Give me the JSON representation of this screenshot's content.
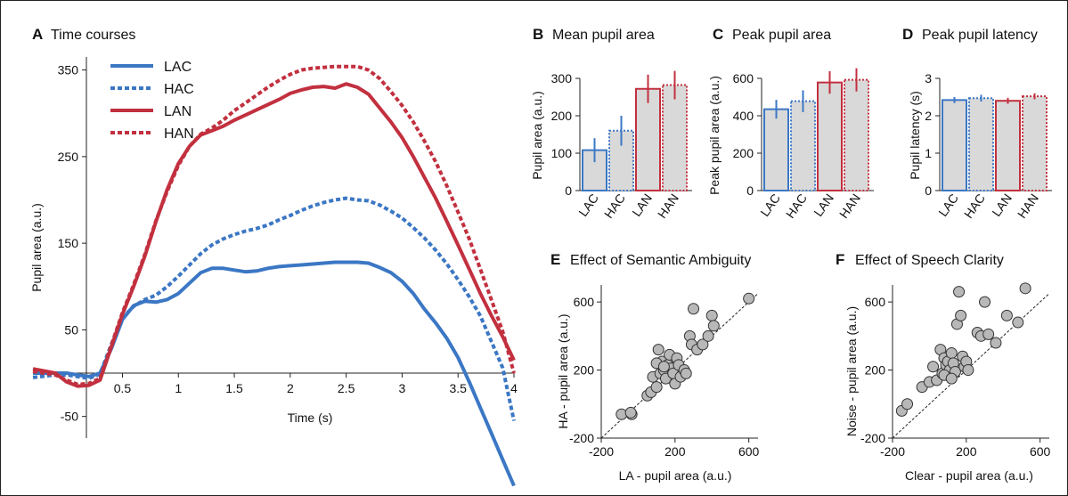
{
  "colors": {
    "LAC": "#3b77c4",
    "HAC": "#3b77c4",
    "LAN": "#c2303f",
    "HAN": "#c2303f",
    "bar_fill": "#d9d9d9",
    "point_fill": "#b8b8b8"
  },
  "chart_data": [
    {
      "panel_letter": "A",
      "type": "line",
      "title": "Time courses",
      "xlabel": "Time (s)",
      "ylabel": "Pupil area (a.u.)",
      "xlim": [
        -0.3,
        4.0
      ],
      "ylim": [
        -75,
        365
      ],
      "xticks": [
        0.5,
        1,
        1.5,
        2,
        2.5,
        3,
        3.5,
        4
      ],
      "xtick_labels": [
        "0.5",
        "1",
        "1.5",
        "2",
        "2.5",
        "3",
        "3.5",
        "4"
      ],
      "yticks": [
        -50,
        50,
        150,
        250,
        350
      ],
      "ytick_labels": [
        "-50",
        "50",
        "150",
        "250",
        "350"
      ],
      "legend_position": "top-left",
      "series": [
        {
          "name": "LAC",
          "style": "solid",
          "x": [
            -0.3,
            -0.1,
            0.0,
            0.1,
            0.2,
            0.3,
            0.4,
            0.5,
            0.6,
            0.7,
            0.8,
            0.9,
            1.0,
            1.1,
            1.2,
            1.3,
            1.4,
            1.5,
            1.6,
            1.7,
            1.8,
            1.9,
            2.0,
            2.1,
            2.2,
            2.3,
            2.4,
            2.5,
            2.6,
            2.7,
            2.8,
            2.9,
            3.0,
            3.1,
            3.2,
            3.3,
            3.4,
            3.5,
            3.6,
            3.7,
            3.8,
            3.9,
            4.0
          ],
          "values": [
            0,
            0,
            0,
            -2,
            -4,
            0,
            28,
            62,
            78,
            83,
            82,
            85,
            92,
            104,
            116,
            121,
            121,
            119,
            117,
            118,
            121,
            123,
            124,
            125,
            126,
            127,
            128,
            128,
            128,
            127,
            122,
            116,
            106,
            92,
            74,
            58,
            40,
            18,
            -10,
            -40,
            -70,
            -100,
            -130
          ]
        },
        {
          "name": "HAC",
          "style": "dashed",
          "x": [
            -0.3,
            -0.1,
            0.0,
            0.1,
            0.2,
            0.3,
            0.4,
            0.5,
            0.6,
            0.7,
            0.8,
            0.9,
            1.0,
            1.1,
            1.2,
            1.3,
            1.4,
            1.5,
            1.6,
            1.7,
            1.8,
            1.9,
            2.0,
            2.1,
            2.2,
            2.3,
            2.4,
            2.5,
            2.6,
            2.7,
            2.8,
            2.9,
            3.0,
            3.1,
            3.2,
            3.3,
            3.4,
            3.5,
            3.6,
            3.7,
            3.8,
            3.9,
            4.0
          ],
          "values": [
            -5,
            -2,
            -2,
            -4,
            -6,
            -1,
            33,
            64,
            77,
            85,
            90,
            100,
            112,
            125,
            138,
            148,
            155,
            160,
            164,
            167,
            171,
            177,
            182,
            188,
            193,
            197,
            200,
            202,
            200,
            199,
            194,
            187,
            179,
            168,
            156,
            142,
            126,
            108,
            88,
            66,
            36,
            6,
            -55
          ]
        },
        {
          "name": "LAN",
          "style": "solid",
          "x": [
            -0.3,
            -0.1,
            0.0,
            0.1,
            0.2,
            0.3,
            0.4,
            0.5,
            0.6,
            0.7,
            0.8,
            0.9,
            1.0,
            1.1,
            1.2,
            1.3,
            1.4,
            1.5,
            1.6,
            1.7,
            1.8,
            1.9,
            2.0,
            2.1,
            2.2,
            2.3,
            2.4,
            2.5,
            2.6,
            2.7,
            2.8,
            2.9,
            3.0,
            3.1,
            3.2,
            3.3,
            3.4,
            3.5,
            3.6,
            3.7,
            3.8,
            3.9,
            4.0
          ],
          "values": [
            5,
            0,
            -10,
            -15,
            -14,
            -8,
            30,
            68,
            100,
            135,
            175,
            212,
            242,
            262,
            275,
            280,
            285,
            292,
            298,
            304,
            310,
            316,
            323,
            327,
            330,
            331,
            329,
            334,
            330,
            322,
            306,
            290,
            272,
            250,
            226,
            202,
            175,
            148,
            120,
            92,
            66,
            42,
            15
          ]
        },
        {
          "name": "HAN",
          "style": "dashed",
          "x": [
            -0.3,
            -0.1,
            0.0,
            0.1,
            0.2,
            0.3,
            0.4,
            0.5,
            0.6,
            0.7,
            0.8,
            0.9,
            1.0,
            1.1,
            1.2,
            1.3,
            1.4,
            1.5,
            1.6,
            1.7,
            1.8,
            1.9,
            2.0,
            2.1,
            2.2,
            2.3,
            2.4,
            2.5,
            2.6,
            2.7,
            2.8,
            2.9,
            3.0,
            3.1,
            3.2,
            3.3,
            3.4,
            3.5,
            3.6,
            3.7,
            3.8,
            3.9,
            4.0
          ],
          "values": [
            2,
            -2,
            -8,
            -13,
            -12,
            -6,
            32,
            70,
            102,
            137,
            176,
            210,
            240,
            262,
            276,
            283,
            292,
            303,
            312,
            321,
            330,
            338,
            345,
            350,
            352,
            353,
            354,
            354,
            354,
            350,
            340,
            325,
            309,
            290,
            268,
            244,
            216,
            186,
            155,
            120,
            84,
            48,
            0
          ]
        }
      ]
    },
    {
      "panel_letter": "B",
      "type": "bar",
      "title": "Mean pupil area",
      "ylabel": "Pupil area (a.u.)",
      "categories": [
        "LAC",
        "HAC",
        "LAN",
        "HAN"
      ],
      "values": [
        108,
        160,
        272,
        282
      ],
      "errors": [
        32,
        40,
        38,
        38
      ],
      "ylim": [
        0,
        300
      ],
      "yticks": [
        0,
        100,
        200,
        300
      ],
      "ytick_labels": [
        "0",
        "100",
        "200",
        "300"
      ]
    },
    {
      "panel_letter": "C",
      "type": "bar",
      "title": "Peak pupil area",
      "ylabel": "Peak pupil area (a.u.)",
      "categories": [
        "LAC",
        "HAC",
        "LAN",
        "HAN"
      ],
      "values": [
        435,
        478,
        578,
        592
      ],
      "errors": [
        50,
        58,
        60,
        62
      ],
      "ylim": [
        0,
        600
      ],
      "yticks": [
        0,
        200,
        400,
        600
      ],
      "ytick_labels": [
        "0",
        "200",
        "400",
        "600"
      ]
    },
    {
      "panel_letter": "D",
      "type": "bar",
      "title": "Peak pupil latency",
      "ylabel": "Pupil latency (s)",
      "categories": [
        "LAC",
        "HAC",
        "LAN",
        "HAN"
      ],
      "values": [
        2.42,
        2.47,
        2.4,
        2.52
      ],
      "errors": [
        0.08,
        0.09,
        0.08,
        0.08
      ],
      "ylim": [
        0,
        3
      ],
      "yticks": [
        0,
        1,
        2,
        3
      ],
      "ytick_labels": [
        "0",
        "1",
        "2",
        "3"
      ]
    },
    {
      "panel_letter": "E",
      "type": "scatter",
      "title": "Effect of Semantic Ambiguity",
      "xlabel": "LA - pupil area (a.u.)",
      "ylabel": "HA - pupil area (a.u.)",
      "xlim": [
        -200,
        650
      ],
      "ylim": [
        -200,
        700
      ],
      "xticks": [
        -200,
        200,
        600
      ],
      "xtick_labels": [
        "-200",
        "200",
        "600"
      ],
      "yticks": [
        -200,
        200,
        600
      ],
      "ytick_labels": [
        "-200",
        "200",
        "600"
      ],
      "identity_line": true,
      "x": [
        -90,
        -35,
        -40,
        50,
        70,
        80,
        100,
        110,
        120,
        130,
        140,
        150,
        160,
        170,
        180,
        190,
        200,
        210,
        220,
        230,
        250,
        260,
        280,
        290,
        300,
        320,
        350,
        380,
        400,
        410,
        600,
        100,
        140
      ],
      "y": [
        -60,
        -60,
        -50,
        50,
        70,
        160,
        100,
        320,
        180,
        250,
        200,
        150,
        230,
        290,
        210,
        180,
        120,
        270,
        230,
        160,
        200,
        180,
        400,
        350,
        560,
        320,
        350,
        400,
        520,
        460,
        620,
        240,
        220
      ]
    },
    {
      "panel_letter": "F",
      "type": "scatter",
      "title": "Effect of Speech Clarity",
      "xlabel": "Clear - pupil area (a.u.)",
      "ylabel": "Noise - pupil area (a.u.)",
      "xlim": [
        -200,
        650
      ],
      "ylim": [
        -200,
        700
      ],
      "xticks": [
        -200,
        200,
        600
      ],
      "xtick_labels": [
        "-200",
        "200",
        "600"
      ],
      "yticks": [
        -200,
        200,
        600
      ],
      "ytick_labels": [
        "-200",
        "200",
        "600"
      ],
      "identity_line": true,
      "x": [
        -150,
        -120,
        -40,
        0,
        20,
        40,
        60,
        70,
        80,
        90,
        100,
        110,
        120,
        130,
        140,
        150,
        160,
        170,
        180,
        190,
        200,
        210,
        260,
        280,
        300,
        320,
        360,
        420,
        480,
        520,
        80,
        120
      ],
      "y": [
        -40,
        0,
        100,
        130,
        220,
        140,
        320,
        180,
        270,
        230,
        250,
        200,
        300,
        240,
        190,
        470,
        660,
        520,
        280,
        220,
        250,
        200,
        420,
        400,
        600,
        410,
        360,
        520,
        480,
        680,
        170,
        150
      ]
    }
  ]
}
